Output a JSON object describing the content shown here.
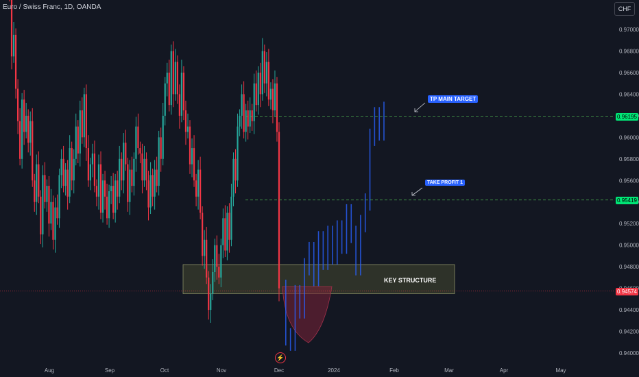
{
  "header": {
    "symbol_title": "Euro / Swiss Franc, 1D, OANDA",
    "currency_button": "CHF"
  },
  "annotations": {
    "tp_main_target": "TP MAIN TARGET",
    "take_profit_1": "TAKE PROFIT 1",
    "key_structure": "KEY STRUCTURE"
  },
  "price_tags": {
    "tp_main": "0.96195",
    "tp1": "0.95419",
    "current": "0.94574"
  },
  "colors": {
    "background": "#131722",
    "up": "#26a69a",
    "down": "#f23645",
    "projection": "#2962ff",
    "target_line": "#4caf50",
    "label_green": "#00e676",
    "current_price": "#f23645"
  },
  "chart_data": {
    "type": "candlestick",
    "title": "Euro / Swiss Franc, 1D, OANDA",
    "y_axis": {
      "ticks": [
        "0.97000",
        "0.96800",
        "0.96600",
        "0.96400",
        "0.96200",
        "0.96000",
        "0.95800",
        "0.95600",
        "0.95400",
        "0.95200",
        "0.95000",
        "0.94800",
        "0.94600",
        "0.94400",
        "0.94200",
        "0.94000"
      ],
      "range": [
        0.9395,
        0.9733
      ]
    },
    "x_axis": {
      "ticks": [
        "Aug",
        "Sep",
        "Oct",
        "Nov",
        "Dec",
        "2024",
        "Feb",
        "Mar",
        "Apr",
        "May"
      ]
    },
    "levels": [
      {
        "name": "TP MAIN TARGET",
        "value": 0.96195
      },
      {
        "name": "TAKE PROFIT 1",
        "value": 0.95419
      },
      {
        "name": "current",
        "value": 0.94574
      }
    ],
    "zone": {
      "label": "KEY STRUCTURE",
      "from": 0.9455,
      "to": 0.9482
    },
    "closes": [
      0.9735,
      0.9675,
      0.9695,
      0.9645,
      0.9615,
      0.958,
      0.9635,
      0.9605,
      0.962,
      0.9595,
      0.9615,
      0.956,
      0.954,
      0.9575,
      0.9545,
      0.951,
      0.9565,
      0.954,
      0.9555,
      0.952,
      0.954,
      0.9505,
      0.9535,
      0.9525,
      0.9565,
      0.958,
      0.9555,
      0.957,
      0.9545,
      0.959,
      0.956,
      0.958,
      0.961,
      0.9585,
      0.9625,
      0.96,
      0.964,
      0.959,
      0.956,
      0.9575,
      0.9585,
      0.9555,
      0.9545,
      0.9575,
      0.953,
      0.956,
      0.9545,
      0.9525,
      0.955,
      0.9555,
      0.953,
      0.956,
      0.9545,
      0.958,
      0.956,
      0.9595,
      0.9575,
      0.954,
      0.957,
      0.9555,
      0.958,
      0.961,
      0.959,
      0.9585,
      0.956,
      0.958,
      0.956,
      0.9535,
      0.9565,
      0.9545,
      0.957,
      0.9555,
      0.96,
      0.958,
      0.962,
      0.965,
      0.966,
      0.963,
      0.968,
      0.964,
      0.967,
      0.964,
      0.962,
      0.966,
      0.9625,
      0.9605,
      0.961,
      0.9575,
      0.959,
      0.956,
      0.9545,
      0.957,
      0.953,
      0.949,
      0.9505,
      0.947,
      0.944,
      0.9455,
      0.9475,
      0.95,
      0.948,
      0.947,
      0.95,
      0.9525,
      0.9495,
      0.953,
      0.9505,
      0.9545,
      0.958,
      0.956,
      0.961,
      0.962,
      0.964,
      0.9605,
      0.9625,
      0.961,
      0.9625,
      0.9615,
      0.965,
      0.963,
      0.966,
      0.964,
      0.968,
      0.965,
      0.967,
      0.9635,
      0.9645,
      0.9625,
      0.965,
      0.9605,
      0.946
    ],
    "projection_path": [
      0.946,
      0.9415,
      0.941,
      0.9455,
      0.944,
      0.948,
      0.9495,
      0.947,
      0.9505,
      0.9485,
      0.951,
      0.949,
      0.9515,
      0.95,
      0.953,
      0.951,
      0.948,
      0.952,
      0.954,
      0.96,
      0.962,
      0.9605,
      0.9625
    ]
  }
}
